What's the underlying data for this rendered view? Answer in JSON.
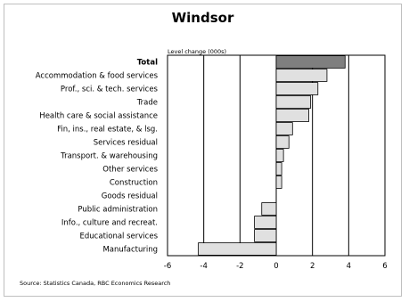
{
  "chart_data": {
    "type": "bar",
    "orientation": "horizontal",
    "title": "Windsor",
    "subtitle": "Level change (000s)",
    "categories": [
      "Total",
      "Accommodation & food services",
      "Prof., sci. & tech. services",
      "Trade",
      "Health care & social assistance",
      "Fin, ins., real estate, & lsg.",
      "Services residual",
      "Transport. & warehousing",
      "Other services",
      "Construction",
      "Goods residual",
      "Public administration",
      "Info., culture and recreat.",
      "Educational services",
      "Manufacturing"
    ],
    "values": [
      3.8,
      2.8,
      2.3,
      1.9,
      1.8,
      0.9,
      0.7,
      0.4,
      0.3,
      0.3,
      0.0,
      -0.8,
      -1.2,
      -1.2,
      -4.3
    ],
    "xlim": [
      -6,
      6
    ],
    "xticks": [
      -6,
      -4,
      -2,
      0,
      2,
      4,
      6
    ],
    "xlabel": "",
    "ylabel": "",
    "grid": true,
    "highlight_category": "Total",
    "colors": {
      "highlight": "#7f7f7f",
      "bar": "#e0e0e0",
      "edge": "#000000"
    }
  },
  "source": "Source: Statistics Canada, RBC Economics Research"
}
